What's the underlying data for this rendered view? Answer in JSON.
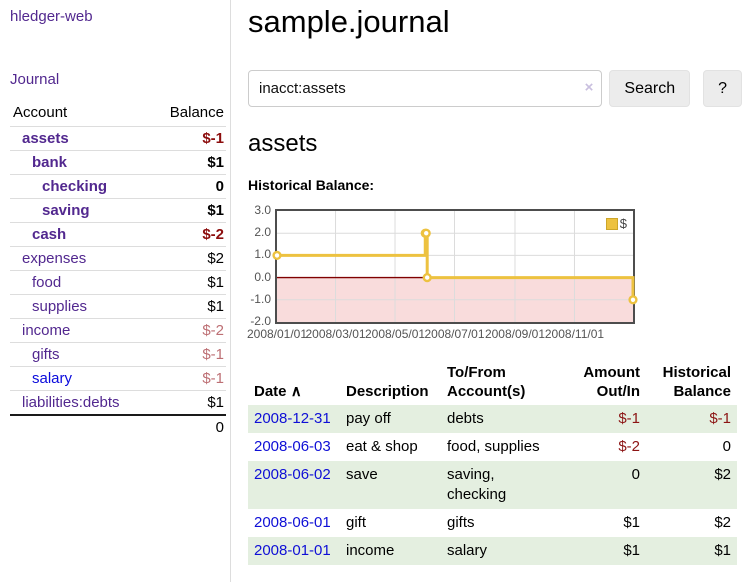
{
  "app": {
    "title": "hledger-web"
  },
  "sidebar": {
    "nav": {
      "journal_label": "Journal"
    },
    "accounts_table": {
      "headers": {
        "account": "Account",
        "balance": "Balance"
      },
      "rows": [
        {
          "name": "assets",
          "balance": "$-1",
          "indent": "1",
          "weight": "bold",
          "link": "visited",
          "sign": "neg-strong"
        },
        {
          "name": "bank",
          "balance": "$1",
          "indent": "2",
          "weight": "bold",
          "link": "visited",
          "sign": "none"
        },
        {
          "name": "checking",
          "balance": "0",
          "indent": "3",
          "weight": "bold",
          "link": "visited",
          "sign": "none"
        },
        {
          "name": "saving",
          "balance": "$1",
          "indent": "3",
          "weight": "bold",
          "link": "visited",
          "sign": "none"
        },
        {
          "name": "cash",
          "balance": "$-2",
          "indent": "2",
          "weight": "bold",
          "link": "visited",
          "sign": "neg-strong"
        },
        {
          "name": "expenses",
          "balance": "$2",
          "indent": "1",
          "weight": "normal",
          "link": "visited",
          "sign": "none"
        },
        {
          "name": "food",
          "balance": "$1",
          "indent": "2",
          "weight": "normal",
          "link": "visited",
          "sign": "none"
        },
        {
          "name": "supplies",
          "balance": "$1",
          "indent": "2",
          "weight": "normal",
          "link": "visited",
          "sign": "none"
        },
        {
          "name": "income",
          "balance": "$-2",
          "indent": "1",
          "weight": "normal",
          "link": "visited",
          "sign": "neg-soft"
        },
        {
          "name": "gifts",
          "balance": "$-1",
          "indent": "2",
          "weight": "normal",
          "link": "visited",
          "sign": "neg-soft"
        },
        {
          "name": "salary",
          "balance": "$-1",
          "indent": "2",
          "weight": "normal",
          "link": "unvisited",
          "sign": "neg-soft"
        },
        {
          "name": "liabilities:debts",
          "balance": "$1",
          "indent": "1",
          "weight": "normal",
          "link": "visited",
          "sign": "none"
        }
      ],
      "total": "0"
    }
  },
  "header": {
    "title": "sample.journal"
  },
  "search": {
    "value": "inacct:assets",
    "clear_icon": "×",
    "button_label": "Search",
    "help_label": "?"
  },
  "content": {
    "account_heading": "assets",
    "chart_label": "Historical Balance:"
  },
  "chart_data": {
    "type": "line",
    "step": true,
    "title": "Historical Balance",
    "series": [
      {
        "name": "$",
        "color": "#edc240",
        "points": [
          [
            "2008-01-01",
            1
          ],
          [
            "2008-06-01",
            2
          ],
          [
            "2008-06-02",
            2
          ],
          [
            "2008-06-03",
            0
          ],
          [
            "2008-12-31",
            -1
          ]
        ]
      }
    ],
    "xrange": [
      "2008-01-01",
      "2008-12-31"
    ],
    "ylim": [
      -2,
      3
    ],
    "yticks": [
      {
        "label": "3.0",
        "value": 3
      },
      {
        "label": "2.0",
        "value": 2
      },
      {
        "label": "1.0",
        "value": 1
      },
      {
        "label": "0.0",
        "value": 0
      },
      {
        "label": "-1.0",
        "value": -1
      },
      {
        "label": "-2.0",
        "value": -2
      }
    ],
    "xticks": [
      {
        "label": "2008/01/01",
        "date": "2008-01-01"
      },
      {
        "label": "2008/03/01",
        "date": "2008-03-01"
      },
      {
        "label": "2008/05/01",
        "date": "2008-05-01"
      },
      {
        "label": "2008/07/01",
        "date": "2008-07-01"
      },
      {
        "label": "2008/09/01",
        "date": "2008-09-01"
      },
      {
        "label": "2008/11/01",
        "date": "2008-11-01"
      }
    ],
    "grid": true,
    "grid_color": "#dcdcdc",
    "zero_line_color": "#800000",
    "negative_fill": "#f9dcdc",
    "axis_label_color": "#545454",
    "legend_position": "top-right",
    "marker": "open-circle"
  },
  "register_table": {
    "headers": {
      "date": "Date",
      "sort_indicator": "∧",
      "description": "Description",
      "account": "To/From Account(s)",
      "amount": "Amount Out/In",
      "balance": "Historical Balance"
    },
    "rows": [
      {
        "date": "2008-12-31",
        "description": "pay off",
        "accounts": "debts",
        "amount": "$-1",
        "amount_sign": "neg",
        "balance": "$-1",
        "balance_sign": "neg"
      },
      {
        "date": "2008-06-03",
        "description": "eat & shop",
        "accounts": "food, supplies",
        "amount": "$-2",
        "amount_sign": "neg",
        "balance": "0",
        "balance_sign": "pos"
      },
      {
        "date": "2008-06-02",
        "description": "save",
        "accounts": "saving, checking",
        "amount": "0",
        "amount_sign": "pos",
        "balance": "$2",
        "balance_sign": "pos"
      },
      {
        "date": "2008-06-01",
        "description": "gift",
        "accounts": "gifts",
        "amount": "$1",
        "amount_sign": "pos",
        "balance": "$2",
        "balance_sign": "pos"
      },
      {
        "date": "2008-01-01",
        "description": "income",
        "accounts": "salary",
        "amount": "$1",
        "amount_sign": "pos",
        "balance": "$1",
        "balance_sign": "pos"
      }
    ]
  }
}
